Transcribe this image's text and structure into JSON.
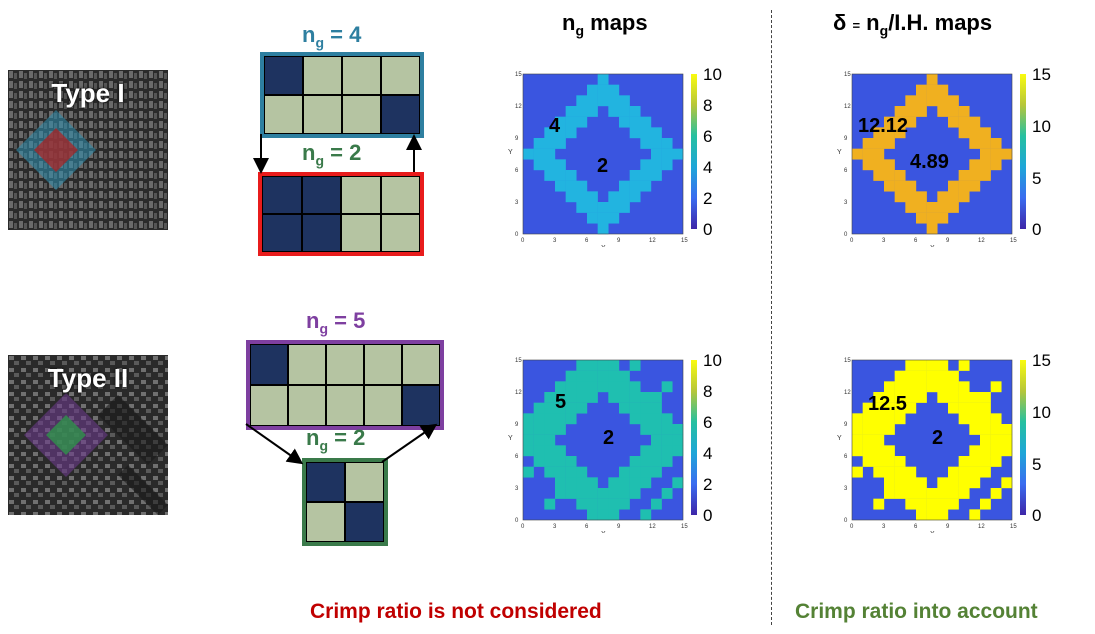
{
  "columns": {
    "ng_maps_title_main": "n",
    "ng_maps_title_sub": "g",
    "ng_maps_title_rest": " maps",
    "delta_title_a": "δ ",
    "delta_title_eq": "=",
    "delta_title_n": " n",
    "delta_title_sub": "g",
    "delta_title_rest": "/I.H. maps"
  },
  "rows": [
    {
      "type_label": "Type I",
      "top_pattern": {
        "label_main": "n",
        "label_sub": "g",
        "label_value": " = 4",
        "color": "#2e7fa0",
        "border": "#2e7fa0"
      },
      "bottom_pattern": {
        "label_main": "n",
        "label_sub": "g",
        "label_value": " = 2",
        "color": "#3a7a4a",
        "border": "#e81c1c"
      }
    },
    {
      "type_label": "Type II",
      "top_pattern": {
        "label_main": "n",
        "label_sub": "g",
        "label_value": " = 5",
        "color": "#7e3fa0",
        "border": "#7e3fa0"
      },
      "bottom_pattern": {
        "label_main": "n",
        "label_sub": "g",
        "label_value": " = 2",
        "color": "#3a7a4a",
        "border": "#3a7a4a"
      }
    }
  ],
  "maps": {
    "axis_ticks": [
      "0",
      "3",
      "6",
      "9",
      "12",
      "15"
    ],
    "x_label": "X",
    "y_label": "Y",
    "ng_colorbar_ticks": [
      "10",
      "8",
      "6",
      "4",
      "2",
      "0"
    ],
    "delta_colorbar_ticks": [
      "15",
      "10",
      "5",
      "0"
    ],
    "ng_type1_outer": "4",
    "ng_type1_inner": "2",
    "delta_type1_outer": "12.12",
    "delta_type1_inner": "4.89",
    "ng_type2_outer": "5",
    "ng_type2_inner": "2",
    "delta_type2_outer": "12.5",
    "delta_type2_inner": "2"
  },
  "colors": {
    "map_low": "#3a55e0",
    "ng_type1_ring": "#22b4e0",
    "ng_type2_ring": "#1fbfb0",
    "delta_type1_ring": "#f0b020",
    "delta_type2_ring": "#ffff00",
    "dark_cell": "#1e3360",
    "light_cell": "#b5c4a2"
  },
  "footer": {
    "left": "Crimp ratio is not considered",
    "left_color": "#c00000",
    "right": "Crimp ratio into account",
    "right_color": "#548235"
  }
}
